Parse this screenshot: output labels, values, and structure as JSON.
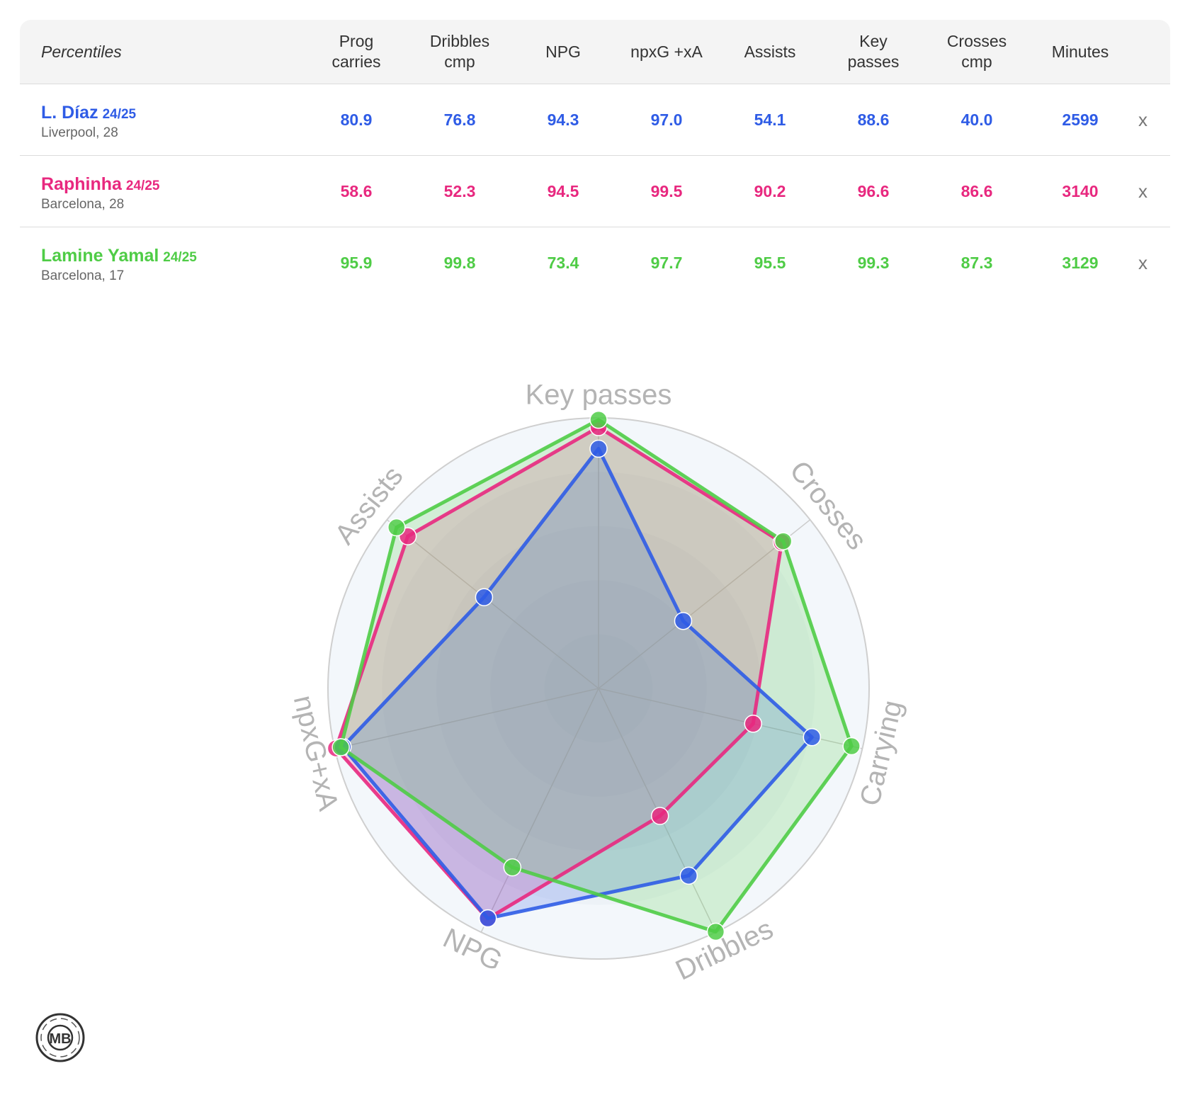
{
  "table": {
    "first_header": "Percentiles",
    "columns": [
      [
        "Prog",
        "carries"
      ],
      [
        "Dribbles",
        "cmp"
      ],
      [
        "NPG"
      ],
      [
        "npxG +xA"
      ],
      [
        "Assists"
      ],
      [
        "Key",
        "passes"
      ],
      [
        "Crosses",
        "cmp"
      ],
      [
        "Minutes"
      ]
    ],
    "close_label": "x",
    "rows": [
      {
        "name": "L. Díaz",
        "season": "24/25",
        "club": "Liverpool, 28",
        "color": "#2f5ce6",
        "values": [
          "80.9",
          "76.8",
          "94.3",
          "97.0",
          "54.1",
          "88.6",
          "40.0",
          "2599"
        ]
      },
      {
        "name": "Raphinha",
        "season": "24/25",
        "club": "Barcelona, 28",
        "color": "#e8287f",
        "values": [
          "58.6",
          "52.3",
          "94.5",
          "99.5",
          "90.2",
          "96.6",
          "86.6",
          "3140"
        ]
      },
      {
        "name": "Lamine Yamal",
        "season": "24/25",
        "club": "Barcelona, 17",
        "color": "#4fcc46",
        "values": [
          "95.9",
          "99.8",
          "73.4",
          "97.7",
          "95.5",
          "99.3",
          "87.3",
          "3129"
        ]
      }
    ]
  },
  "chart_data": {
    "type": "radar",
    "axes": [
      "Key passes",
      "Crosses",
      "Carrying",
      "Dribbles",
      "NPG",
      "npxG+xA",
      "Assists"
    ],
    "range": [
      0,
      100
    ],
    "series": [
      {
        "name": "Raphinha",
        "color": "#e8287f",
        "values": [
          96.6,
          86.6,
          58.6,
          52.3,
          94.5,
          99.5,
          90.2
        ]
      },
      {
        "name": "L. Díaz",
        "color": "#2f5ce6",
        "values": [
          88.6,
          40.0,
          80.9,
          76.8,
          94.3,
          97.0,
          54.1
        ]
      },
      {
        "name": "Lamine Yamal",
        "color": "#4fcc46",
        "values": [
          99.3,
          87.3,
          95.9,
          99.8,
          73.4,
          97.7,
          95.5
        ]
      }
    ]
  },
  "logo": {
    "text": "MB"
  }
}
